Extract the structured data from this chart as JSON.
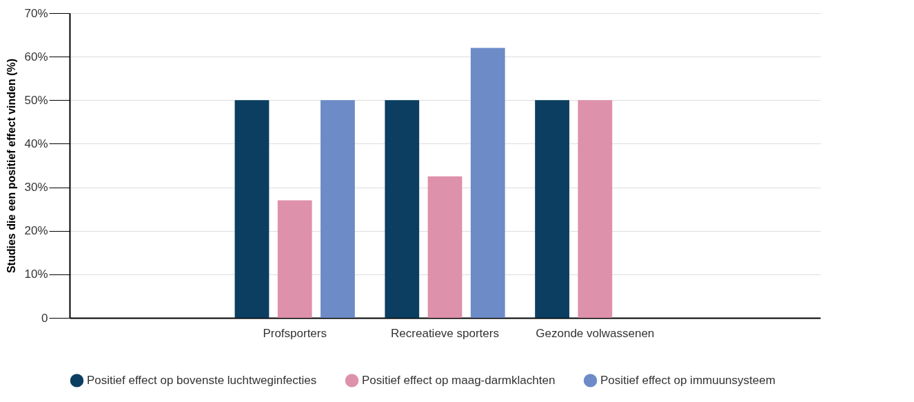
{
  "chart_data": {
    "type": "bar",
    "ylabel": "Studies die een positief effect vinden (%)",
    "categories": [
      null,
      "Profsporters",
      "Recreatieve sporters",
      "Gezonde volwassenen",
      null
    ],
    "series": [
      {
        "name": "Positief effect op bovenste luchtweginfecties",
        "color": "#0b3e60",
        "values": [
          null,
          50,
          50,
          50,
          null
        ]
      },
      {
        "name": "Positief effect op maag-darmklachten",
        "color": "#de91aa",
        "values": [
          null,
          27,
          32.5,
          50,
          null
        ]
      },
      {
        "name": "Positief effect op immuunsysteem",
        "color": "#6d8bc7",
        "values": [
          null,
          50,
          62,
          null,
          null
        ]
      }
    ],
    "ylim": [
      0,
      70
    ],
    "yticks": [
      {
        "value": 0,
        "label": "0"
      },
      {
        "value": 10,
        "label": "10%"
      },
      {
        "value": 20,
        "label": "20%"
      },
      {
        "value": 30,
        "label": "30%"
      },
      {
        "value": 40,
        "label": "40%"
      },
      {
        "value": 50,
        "label": "50%"
      },
      {
        "value": 60,
        "label": "60%"
      },
      {
        "value": 70,
        "label": "70%"
      }
    ],
    "grid": "y",
    "legend": "bottom"
  }
}
